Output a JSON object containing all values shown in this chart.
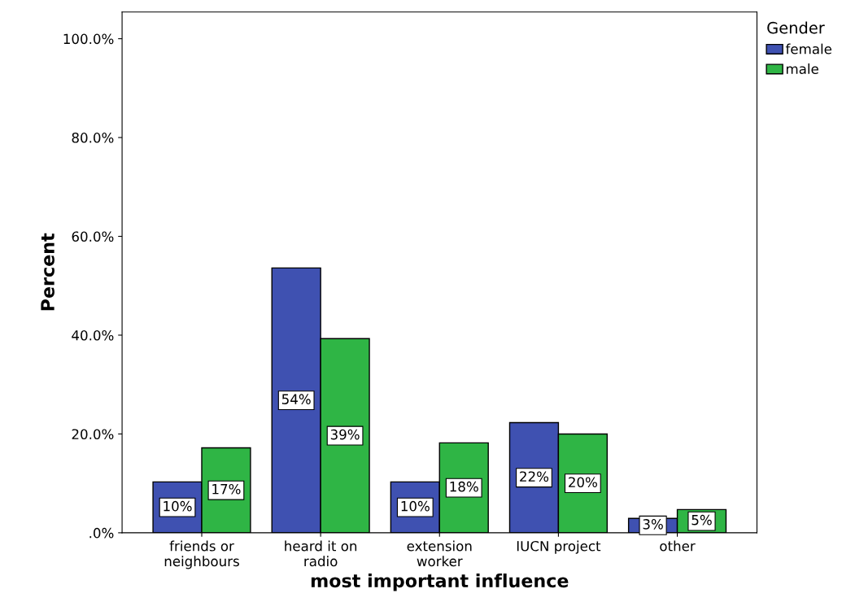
{
  "chart_data": {
    "type": "bar",
    "xlabel": "most important influence",
    "ylabel": "Percent",
    "legend_title": "Gender",
    "categories": [
      "friends or\nneighbours",
      "heard it on\nradio",
      "extension\nworker",
      "IUCN project",
      "other"
    ],
    "series": [
      {
        "name": "female",
        "color": "#3f51b1",
        "values": [
          10.3,
          53.6,
          10.3,
          22.3,
          2.9
        ],
        "value_labels": [
          "10%",
          "54%",
          "10%",
          "22%",
          "3%"
        ]
      },
      {
        "name": "male",
        "color": "#2fb545",
        "values": [
          17.2,
          39.3,
          18.2,
          20.0,
          4.7
        ],
        "value_labels": [
          "17%",
          "39%",
          "18%",
          "20%",
          "5%"
        ]
      }
    ],
    "ylim": [
      0,
      105.4
    ],
    "yticks": [
      {
        "value": 0,
        "label": ".0%"
      },
      {
        "value": 20,
        "label": "20.0%"
      },
      {
        "value": 40,
        "label": "40.0%"
      },
      {
        "value": 60,
        "label": "60.0%"
      },
      {
        "value": 80,
        "label": "80.0%"
      },
      {
        "value": 100,
        "label": "100.0%"
      }
    ],
    "legend": "top right",
    "grid": false
  }
}
